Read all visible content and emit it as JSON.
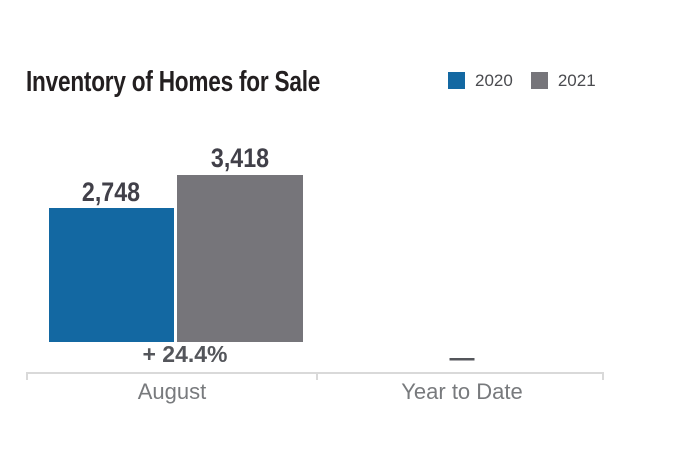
{
  "chart_data": {
    "type": "bar",
    "title": "Inventory of Homes for Sale",
    "categories": [
      "August",
      "Year to Date"
    ],
    "series": [
      {
        "name": "2020",
        "color": "#1368a2",
        "values": [
          2748,
          null
        ]
      },
      {
        "name": "2021",
        "color": "#76757a",
        "values": [
          3418,
          null
        ]
      }
    ],
    "value_labels": [
      "2,748",
      "3,418"
    ],
    "change_labels": [
      "+ 24.4%",
      "—"
    ],
    "xlabel": "",
    "ylabel": "",
    "ylim": [
      0,
      3418
    ],
    "grid": false,
    "legend_position": "top-right",
    "colors": {
      "background": "#ffffff",
      "title_text": "#231f20",
      "value_text": "#414049",
      "change_text": "#54565b",
      "category_text": "#787a7d",
      "axis_line": "#d9d9d9"
    }
  }
}
